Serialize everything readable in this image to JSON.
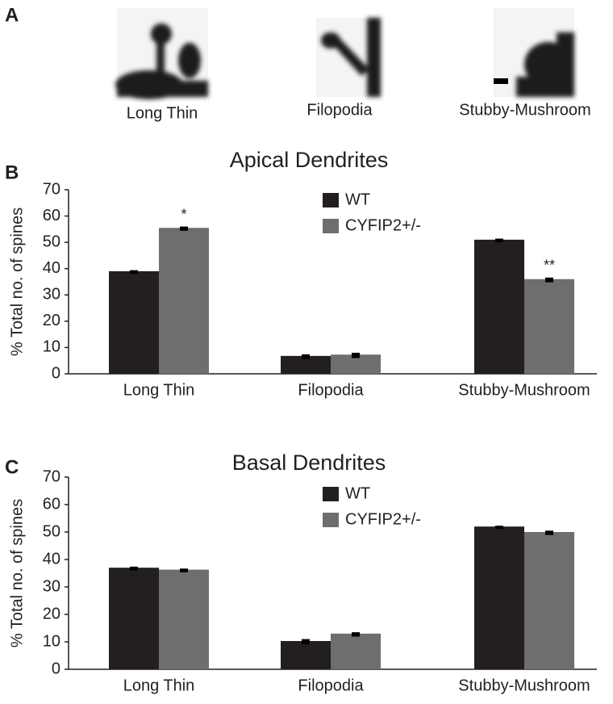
{
  "panel_a": {
    "label": "A",
    "captions": [
      "Long Thin",
      "Filopodia",
      "Stubby-Mushroom"
    ]
  },
  "chart_data": [
    {
      "type": "bar",
      "panel_label": "B",
      "title": "Apical Dendrites",
      "ylabel": "% Total no. of spines",
      "categories": [
        "Long Thin",
        "Filopodia",
        "Stubby-Mushroom"
      ],
      "series": [
        {
          "name": "WT",
          "color": "#231f20",
          "values": [
            39,
            6.8,
            51
          ],
          "errors": [
            0.4,
            0.6,
            0.4
          ],
          "annotations": [
            null,
            null,
            null
          ]
        },
        {
          "name": "CYFIP2+/-",
          "color": "#6d6e70",
          "values": [
            55.5,
            7.3,
            36
          ],
          "errors": [
            0.5,
            0.7,
            0.6
          ],
          "annotations": [
            "*",
            null,
            "**"
          ]
        }
      ],
      "ylim": [
        0,
        70
      ],
      "yticks": [
        0,
        10,
        20,
        30,
        40,
        50,
        60,
        70
      ],
      "grid": false
    },
    {
      "type": "bar",
      "panel_label": "C",
      "title": "Basal Dendrites",
      "ylabel": "% Total no. of spines",
      "categories": [
        "Long Thin",
        "Filopodia",
        "Stubby-Mushroom"
      ],
      "series": [
        {
          "name": "WT",
          "color": "#231f20",
          "values": [
            37,
            10.3,
            52
          ],
          "errors": [
            0.4,
            0.7,
            0.3
          ],
          "annotations": [
            null,
            null,
            null
          ]
        },
        {
          "name": "CYFIP2+/-",
          "color": "#6d6e70",
          "values": [
            36.3,
            13,
            50
          ],
          "errors": [
            0.4,
            0.5,
            0.5
          ],
          "annotations": [
            null,
            null,
            null
          ]
        }
      ],
      "ylim": [
        0,
        70
      ],
      "yticks": [
        0,
        10,
        20,
        30,
        40,
        50,
        60,
        70
      ],
      "grid": false
    }
  ]
}
